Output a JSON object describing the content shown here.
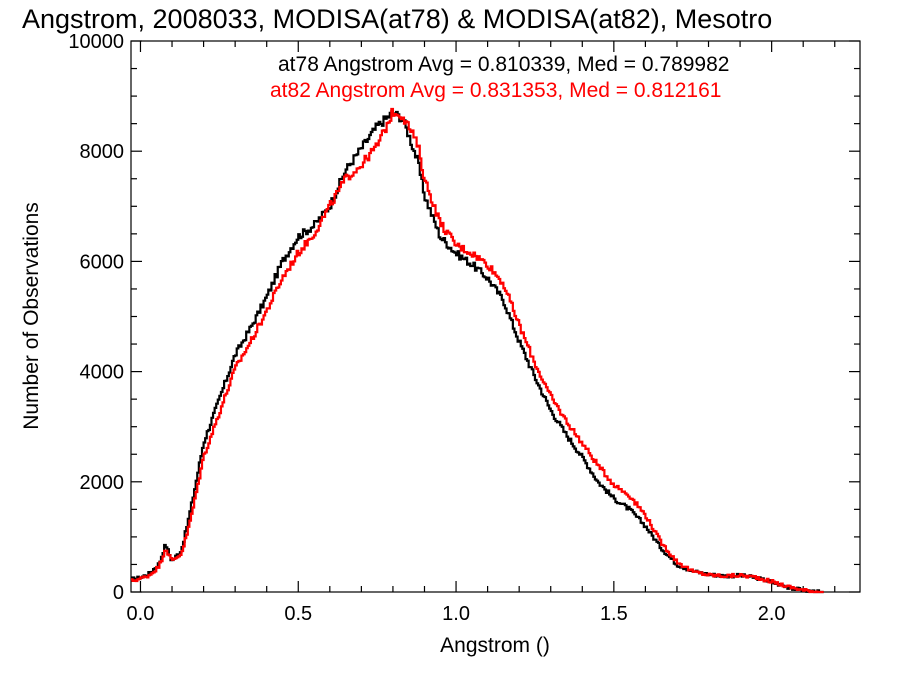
{
  "chart_data": {
    "type": "line",
    "title": "Angstrom, 2008033, MODISA(at78) & MODISA(at82), Mesotro",
    "xlabel": "Angstrom ()",
    "ylabel": "Number of Observations",
    "xlim": [
      -0.03,
      2.28
    ],
    "ylim": [
      0,
      10000
    ],
    "x_ticks": [
      0.0,
      0.5,
      1.0,
      1.5,
      2.0
    ],
    "x_tick_labels": [
      "0.0",
      "0.5",
      "1.0",
      "1.5",
      "2.0"
    ],
    "y_ticks": [
      0,
      2000,
      4000,
      6000,
      8000,
      10000
    ],
    "y_tick_labels": [
      "0",
      "2000",
      "4000",
      "6000",
      "8000",
      "10000"
    ],
    "grid": false,
    "legend_position": "top-right",
    "series": [
      {
        "name": "at78",
        "legend_text": "at78 Angstrom Avg = 0.810339, Med = 0.789982",
        "color": "#000000",
        "points": [
          [
            -0.03,
            230
          ],
          [
            0.0,
            260
          ],
          [
            0.03,
            340
          ],
          [
            0.06,
            520
          ],
          [
            0.08,
            870
          ],
          [
            0.1,
            560
          ],
          [
            0.13,
            760
          ],
          [
            0.15,
            1250
          ],
          [
            0.17,
            1800
          ],
          [
            0.2,
            2700
          ],
          [
            0.25,
            3500
          ],
          [
            0.3,
            4300
          ],
          [
            0.35,
            4800
          ],
          [
            0.4,
            5350
          ],
          [
            0.45,
            6000
          ],
          [
            0.5,
            6450
          ],
          [
            0.55,
            6650
          ],
          [
            0.6,
            7000
          ],
          [
            0.65,
            7650
          ],
          [
            0.7,
            8050
          ],
          [
            0.75,
            8450
          ],
          [
            0.78,
            8600
          ],
          [
            0.8,
            8700
          ],
          [
            0.83,
            8600
          ],
          [
            0.85,
            8300
          ],
          [
            0.88,
            7800
          ],
          [
            0.9,
            7200
          ],
          [
            0.95,
            6450
          ],
          [
            1.0,
            6150
          ],
          [
            1.05,
            5950
          ],
          [
            1.1,
            5700
          ],
          [
            1.15,
            5300
          ],
          [
            1.2,
            4550
          ],
          [
            1.25,
            3900
          ],
          [
            1.3,
            3300
          ],
          [
            1.35,
            2850
          ],
          [
            1.4,
            2450
          ],
          [
            1.45,
            2000
          ],
          [
            1.5,
            1700
          ],
          [
            1.55,
            1500
          ],
          [
            1.6,
            1200
          ],
          [
            1.65,
            800
          ],
          [
            1.7,
            500
          ],
          [
            1.75,
            380
          ],
          [
            1.8,
            320
          ],
          [
            1.85,
            290
          ],
          [
            1.9,
            300
          ],
          [
            1.95,
            260
          ],
          [
            2.0,
            180
          ],
          [
            2.05,
            90
          ],
          [
            2.1,
            30
          ],
          [
            2.15,
            0
          ],
          [
            2.28,
            0
          ]
        ]
      },
      {
        "name": "at82",
        "legend_text": "at82 Angstrom Avg = 0.831353, Med = 0.812161",
        "color": "#ff0000",
        "points": [
          [
            -0.03,
            200
          ],
          [
            0.0,
            240
          ],
          [
            0.03,
            310
          ],
          [
            0.06,
            470
          ],
          [
            0.08,
            800
          ],
          [
            0.1,
            560
          ],
          [
            0.13,
            700
          ],
          [
            0.15,
            1100
          ],
          [
            0.17,
            1600
          ],
          [
            0.2,
            2450
          ],
          [
            0.25,
            3250
          ],
          [
            0.3,
            4050
          ],
          [
            0.35,
            4550
          ],
          [
            0.4,
            5100
          ],
          [
            0.45,
            5700
          ],
          [
            0.5,
            6150
          ],
          [
            0.55,
            6500
          ],
          [
            0.6,
            7000
          ],
          [
            0.65,
            7500
          ],
          [
            0.7,
            7750
          ],
          [
            0.75,
            8100
          ],
          [
            0.78,
            8450
          ],
          [
            0.8,
            8720
          ],
          [
            0.83,
            8650
          ],
          [
            0.85,
            8450
          ],
          [
            0.88,
            8100
          ],
          [
            0.9,
            7500
          ],
          [
            0.95,
            6700
          ],
          [
            1.0,
            6300
          ],
          [
            1.05,
            6150
          ],
          [
            1.1,
            5950
          ],
          [
            1.15,
            5600
          ],
          [
            1.2,
            4850
          ],
          [
            1.25,
            4150
          ],
          [
            1.3,
            3550
          ],
          [
            1.35,
            3100
          ],
          [
            1.4,
            2700
          ],
          [
            1.45,
            2300
          ],
          [
            1.5,
            1950
          ],
          [
            1.55,
            1750
          ],
          [
            1.6,
            1400
          ],
          [
            1.65,
            900
          ],
          [
            1.7,
            550
          ],
          [
            1.75,
            370
          ],
          [
            1.8,
            310
          ],
          [
            1.85,
            290
          ],
          [
            1.9,
            300
          ],
          [
            1.95,
            270
          ],
          [
            2.0,
            190
          ],
          [
            2.05,
            100
          ],
          [
            2.1,
            35
          ],
          [
            2.15,
            0
          ],
          [
            2.28,
            0
          ]
        ]
      }
    ]
  }
}
